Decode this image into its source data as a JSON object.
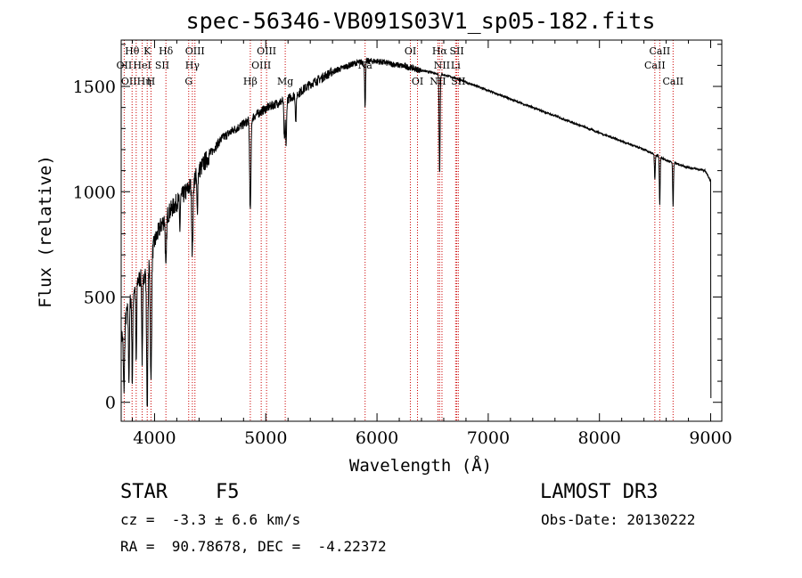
{
  "chart_data": {
    "type": "line",
    "title": "spec-56346-VB091S03V1_sp05-182.fits",
    "xlabel": "Wavelength (Å)",
    "ylabel": "Flux (relative)",
    "xlim": [
      3700,
      9100
    ],
    "ylim": [
      -90,
      1720
    ],
    "x_ticks": [
      4000,
      5000,
      6000,
      7000,
      8000,
      9000
    ],
    "y_ticks": [
      0,
      500,
      1000,
      1500
    ],
    "grid": false,
    "spectrum_color": "#000000",
    "line_marker_color": "#cc0000",
    "continuum": [
      [
        3700,
        300
      ],
      [
        3750,
        420
      ],
      [
        3800,
        520
      ],
      [
        3850,
        580
      ],
      [
        3900,
        600
      ],
      [
        3950,
        650
      ],
      [
        4000,
        760
      ],
      [
        4050,
        830
      ],
      [
        4100,
        880
      ],
      [
        4200,
        950
      ],
      [
        4300,
        1010
      ],
      [
        4400,
        1100
      ],
      [
        4500,
        1180
      ],
      [
        4600,
        1250
      ],
      [
        4700,
        1290
      ],
      [
        4800,
        1320
      ],
      [
        4900,
        1360
      ],
      [
        5000,
        1395
      ],
      [
        5100,
        1420
      ],
      [
        5200,
        1440
      ],
      [
        5300,
        1470
      ],
      [
        5400,
        1510
      ],
      [
        5500,
        1540
      ],
      [
        5600,
        1570
      ],
      [
        5700,
        1590
      ],
      [
        5800,
        1610
      ],
      [
        5900,
        1620
      ],
      [
        6000,
        1620
      ],
      [
        6100,
        1610
      ],
      [
        6200,
        1600
      ],
      [
        6300,
        1590
      ],
      [
        6400,
        1575
      ],
      [
        6500,
        1565
      ],
      [
        6600,
        1555
      ],
      [
        6700,
        1540
      ],
      [
        6800,
        1520
      ],
      [
        7000,
        1480
      ],
      [
        7200,
        1440
      ],
      [
        7400,
        1400
      ],
      [
        7600,
        1360
      ],
      [
        7800,
        1320
      ],
      [
        8000,
        1280
      ],
      [
        8200,
        1240
      ],
      [
        8400,
        1200
      ],
      [
        8600,
        1150
      ],
      [
        8800,
        1115
      ],
      [
        8950,
        1100
      ],
      [
        9000,
        1050
      ]
    ],
    "absorption": [
      {
        "x": 3725,
        "depth": 300,
        "width": 8
      },
      {
        "x": 3770,
        "depth": 350,
        "width": 6
      },
      {
        "x": 3800,
        "depth": 420,
        "width": 6
      },
      {
        "x": 3835,
        "depth": 380,
        "width": 6
      },
      {
        "x": 3889,
        "depth": 400,
        "width": 6
      },
      {
        "x": 3934,
        "depth": 650,
        "width": 8
      },
      {
        "x": 3968,
        "depth": 600,
        "width": 8
      },
      {
        "x": 4102,
        "depth": 260,
        "width": 7
      },
      {
        "x": 4227,
        "depth": 150,
        "width": 5
      },
      {
        "x": 4340,
        "depth": 330,
        "width": 8
      },
      {
        "x": 4384,
        "depth": 180,
        "width": 6
      },
      {
        "x": 4861,
        "depth": 440,
        "width": 8
      },
      {
        "x": 5168,
        "depth": 200,
        "width": 7
      },
      {
        "x": 5183,
        "depth": 220,
        "width": 6
      },
      {
        "x": 5270,
        "depth": 130,
        "width": 6
      },
      {
        "x": 5893,
        "depth": 210,
        "width": 6
      },
      {
        "x": 6563,
        "depth": 470,
        "width": 6
      },
      {
        "x": 8498,
        "depth": 120,
        "width": 5
      },
      {
        "x": 8542,
        "depth": 230,
        "width": 5
      },
      {
        "x": 8662,
        "depth": 210,
        "width": 5
      }
    ],
    "end_drop": [
      {
        "x": 9001,
        "y": 400
      },
      {
        "x": 9002,
        "y": 20
      }
    ],
    "line_markers": [
      3727,
      3798,
      3835,
      3889,
      3934,
      3968,
      4102,
      4307,
      4340,
      4363,
      4861,
      4959,
      5007,
      5175,
      5893,
      6300,
      6364,
      6548,
      6563,
      6584,
      6707,
      6717,
      6731,
      8498,
      8542,
      8662
    ],
    "line_labels": [
      {
        "text": "Hθ",
        "x": 3798,
        "row": 1
      },
      {
        "text": "K",
        "x": 3934,
        "row": 1
      },
      {
        "text": "Hδ",
        "x": 4102,
        "row": 1
      },
      {
        "text": "OIII",
        "x": 4363,
        "row": 1
      },
      {
        "text": "OIII",
        "x": 5007,
        "row": 1
      },
      {
        "text": "OI",
        "x": 6300,
        "row": 1
      },
      {
        "text": "Hα",
        "x": 6563,
        "row": 1
      },
      {
        "text": "SII",
        "x": 6717,
        "row": 1
      },
      {
        "text": "CaII",
        "x": 8542,
        "row": 1
      },
      {
        "text": "OII",
        "x": 3727,
        "row": 2
      },
      {
        "text": "HeI",
        "x": 3889,
        "row": 2
      },
      {
        "text": "SII",
        "x": 4068,
        "row": 2
      },
      {
        "text": "Hγ",
        "x": 4340,
        "row": 2
      },
      {
        "text": "OIII",
        "x": 4959,
        "row": 2
      },
      {
        "text": "Na",
        "x": 5893,
        "row": 2
      },
      {
        "text": "NII",
        "x": 6584,
        "row": 2
      },
      {
        "text": "Li",
        "x": 6707,
        "row": 2
      },
      {
        "text": "CaII",
        "x": 8498,
        "row": 2
      },
      {
        "text": "OIIHη",
        "x": 3835,
        "row": 3
      },
      {
        "text": "H",
        "x": 3968,
        "row": 3
      },
      {
        "text": "G",
        "x": 4307,
        "row": 3
      },
      {
        "text": "Hβ",
        "x": 4861,
        "row": 3
      },
      {
        "text": "Mg",
        "x": 5175,
        "row": 3
      },
      {
        "text": "OI",
        "x": 6364,
        "row": 3
      },
      {
        "text": "NII",
        "x": 6548,
        "row": 3
      },
      {
        "text": "SII",
        "x": 6731,
        "row": 3
      },
      {
        "text": "CaII",
        "x": 8662,
        "row": 3
      }
    ]
  },
  "footer": {
    "object_class": "STAR",
    "subclass": "F5",
    "survey": "LAMOST DR3",
    "redshift": "cz =  -3.3 ± 6.6 km/s",
    "obs_date": "Obs-Date: 20130222",
    "coords": "RA =  90.78678, DEC =  -4.22372"
  }
}
